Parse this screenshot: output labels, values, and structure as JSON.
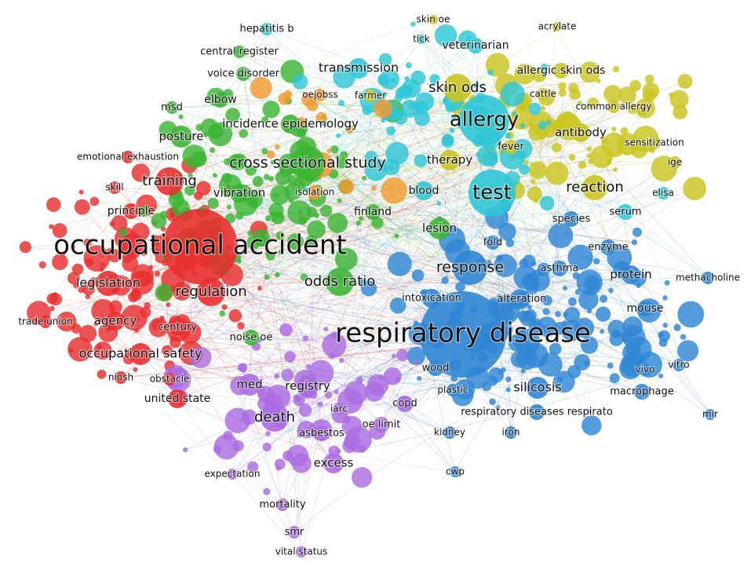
{
  "clusters": {
    "red": {
      "color": "#e8302f"
    },
    "green": {
      "color": "#3cb535"
    },
    "blue": {
      "color": "#2f86d4"
    },
    "yellow": {
      "color": "#c9c420"
    },
    "purple": {
      "color": "#ab6de0"
    },
    "cyan": {
      "color": "#2fc6d6"
    },
    "orange": {
      "color": "#f29a2e"
    }
  },
  "terms": [
    {
      "label": "occupational accident",
      "cluster": "red"
    },
    {
      "label": "respiratory disease",
      "cluster": "blue"
    },
    {
      "label": "allergy",
      "cluster": "cyan"
    },
    {
      "label": "test",
      "cluster": "cyan"
    },
    {
      "label": "cross sectional study",
      "cluster": "green"
    },
    {
      "label": "response",
      "cluster": "blue"
    },
    {
      "label": "odds ratio",
      "cluster": "green"
    },
    {
      "label": "regulation",
      "cluster": "red"
    },
    {
      "label": "legislation",
      "cluster": "red"
    },
    {
      "label": "training",
      "cluster": "red"
    },
    {
      "label": "occupational safety",
      "cluster": "red"
    },
    {
      "label": "death",
      "cluster": "purple"
    },
    {
      "label": "reaction",
      "cluster": "yellow"
    },
    {
      "label": "skin ods",
      "cluster": "yellow"
    },
    {
      "label": "transmission",
      "cluster": "cyan"
    },
    {
      "label": "incidence epidemology",
      "cluster": "green"
    },
    {
      "label": "agency",
      "cluster": "red"
    },
    {
      "label": "silicosis",
      "cluster": "blue"
    },
    {
      "label": "posture",
      "cluster": "green"
    },
    {
      "label": "vibration",
      "cluster": "green"
    },
    {
      "label": "lesion",
      "cluster": "green"
    },
    {
      "label": "therapy",
      "cluster": "yellow"
    },
    {
      "label": "antibody",
      "cluster": "yellow"
    },
    {
      "label": "protein",
      "cluster": "blue"
    },
    {
      "label": "registry",
      "cluster": "purple"
    },
    {
      "label": "med",
      "cluster": "purple"
    },
    {
      "label": "excess",
      "cluster": "purple"
    },
    {
      "label": "blood",
      "cluster": "cyan"
    },
    {
      "label": "finland",
      "cluster": "green"
    },
    {
      "label": "principle",
      "cluster": "red"
    },
    {
      "label": "mouse",
      "cluster": "blue"
    },
    {
      "label": "veterinarian",
      "cluster": "cyan"
    },
    {
      "label": "allergic skin ods",
      "cluster": "yellow"
    },
    {
      "label": "elbow",
      "cluster": "green"
    },
    {
      "label": "voice disorder",
      "cluster": "green"
    },
    {
      "label": "central register",
      "cluster": "green"
    },
    {
      "label": "hepatitis b",
      "cluster": "cyan"
    },
    {
      "label": "msd",
      "cluster": "green"
    },
    {
      "label": "asthma",
      "cluster": "blue"
    },
    {
      "label": "enzyme",
      "cluster": "blue"
    },
    {
      "label": "species",
      "cluster": "blue"
    },
    {
      "label": "serum",
      "cluster": "cyan"
    },
    {
      "label": "fold",
      "cluster": "blue"
    },
    {
      "label": "fever",
      "cluster": "yellow"
    },
    {
      "label": "intoxication",
      "cluster": "blue"
    },
    {
      "label": "alteration",
      "cluster": "blue"
    },
    {
      "label": "wood",
      "cluster": "blue"
    },
    {
      "label": "copd",
      "cluster": "purple"
    },
    {
      "label": "oe limit",
      "cluster": "purple"
    },
    {
      "label": "asbestos",
      "cluster": "purple"
    },
    {
      "label": "united state",
      "cluster": "red"
    },
    {
      "label": "noise oe",
      "cluster": "green"
    },
    {
      "label": "century",
      "cluster": "red"
    },
    {
      "label": "respiratory diseases respirato",
      "cluster": "blue"
    },
    {
      "label": "macrophage",
      "cluster": "blue"
    },
    {
      "label": "mortality",
      "cluster": "purple"
    },
    {
      "label": "smr",
      "cluster": "purple"
    },
    {
      "label": "vital status",
      "cluster": "purple"
    },
    {
      "label": "expectation",
      "cluster": "purple"
    },
    {
      "label": "iarc",
      "cluster": "purple"
    },
    {
      "label": "kidney",
      "cluster": "blue"
    },
    {
      "label": "iron",
      "cluster": "blue"
    },
    {
      "label": "cwp",
      "cluster": "blue"
    },
    {
      "label": "plastic",
      "cluster": "blue"
    },
    {
      "label": "vivo",
      "cluster": "blue"
    },
    {
      "label": "vitro",
      "cluster": "blue"
    },
    {
      "label": "mir",
      "cluster": "blue"
    },
    {
      "label": "methacholine",
      "cluster": "blue"
    },
    {
      "label": "elisa",
      "cluster": "cyan"
    },
    {
      "label": "ige",
      "cluster": "yellow"
    },
    {
      "label": "sensitization",
      "cluster": "yellow"
    },
    {
      "label": "common allergy",
      "cluster": "yellow"
    },
    {
      "label": "cattle",
      "cluster": "yellow"
    },
    {
      "label": "acrylate",
      "cluster": "yellow"
    },
    {
      "label": "skin oe",
      "cluster": "yellow"
    },
    {
      "label": "tick",
      "cluster": "cyan"
    },
    {
      "label": "oejobss",
      "cluster": "orange"
    },
    {
      "label": "farmer",
      "cluster": "yellow"
    },
    {
      "label": "isolation",
      "cluster": "orange"
    },
    {
      "label": "emotional exhaustion",
      "cluster": "red"
    },
    {
      "label": "skill",
      "cluster": "red"
    },
    {
      "label": "trade union",
      "cluster": "red"
    },
    {
      "label": "niosh",
      "cluster": "red"
    },
    {
      "label": "obstacle",
      "cluster": "red"
    }
  ]
}
